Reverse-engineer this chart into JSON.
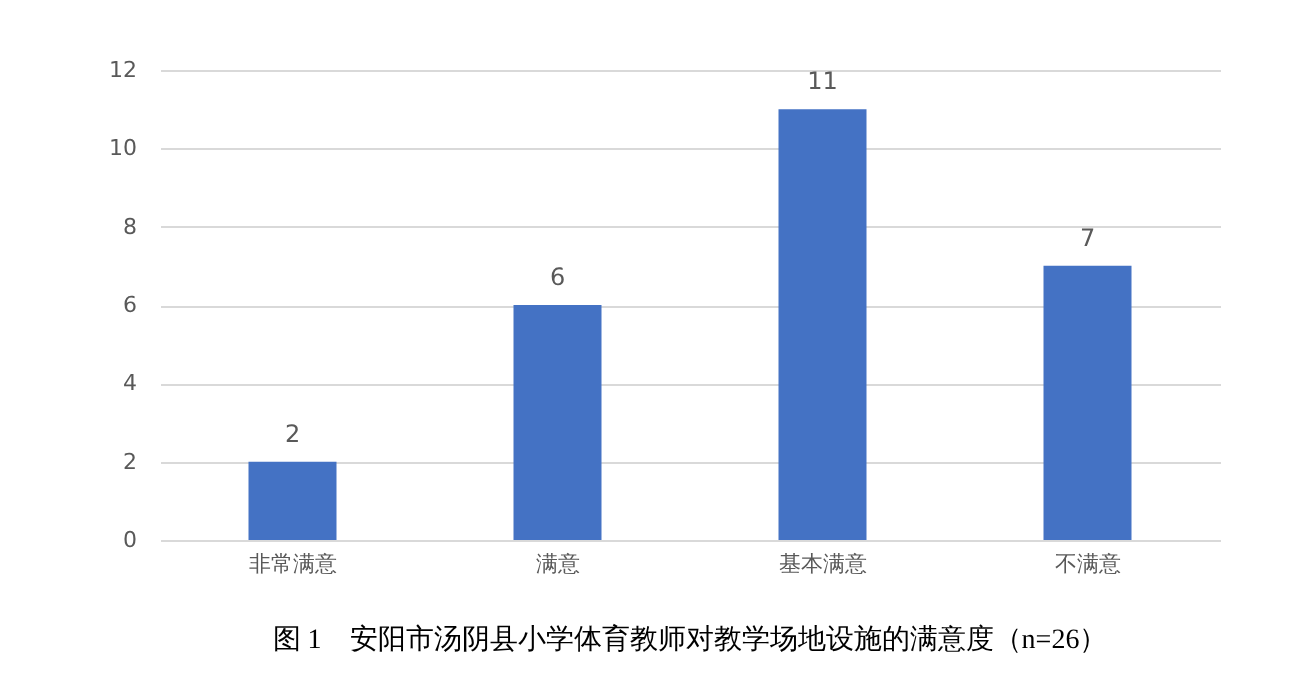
{
  "chart_data": {
    "type": "bar",
    "title": "图 1　安阳市汤阴县小学体育教师对教学场地设施的满意度（n=26）",
    "categories": [
      "非常满意",
      "满意",
      "基本满意",
      "不满意"
    ],
    "values": [
      2,
      6,
      11,
      7
    ],
    "color": "#4472c4",
    "ylim": [
      0,
      12
    ],
    "yticks": [
      0,
      2,
      4,
      6,
      8,
      10,
      12
    ],
    "grid": "y",
    "data_labels": true
  }
}
